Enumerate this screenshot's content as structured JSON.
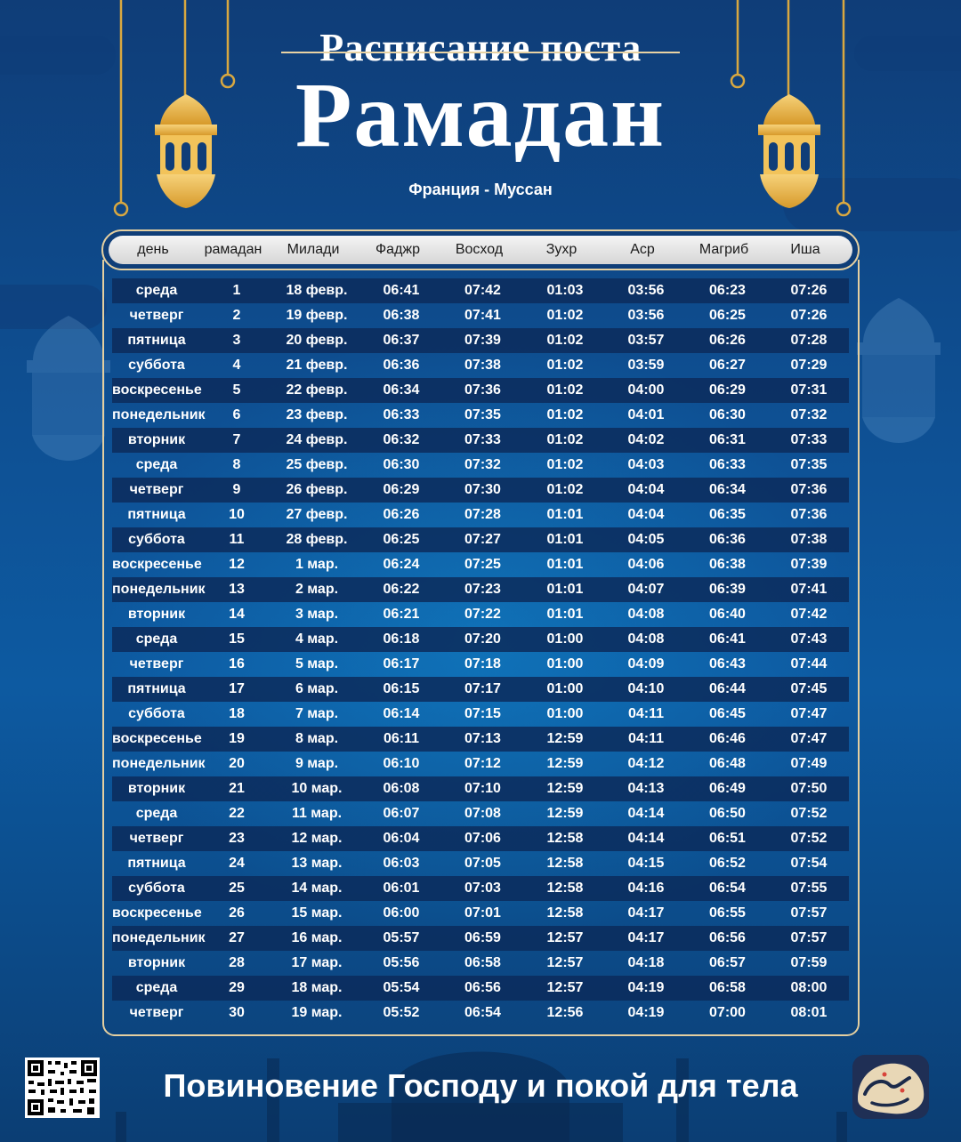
{
  "header": {
    "subtitle": "Расписание поста",
    "title": "Рамадан",
    "location": "Франция - Муссан"
  },
  "columns": [
    "день",
    "рамадан",
    "Милади",
    "Фаджр",
    "Восход",
    "Зухр",
    "Аср",
    "Магриб",
    "Иша"
  ],
  "rows": [
    [
      "среда",
      "1",
      "18 февр.",
      "06:41",
      "07:42",
      "01:03",
      "03:56",
      "06:23",
      "07:26"
    ],
    [
      "четверг",
      "2",
      "19 февр.",
      "06:38",
      "07:41",
      "01:02",
      "03:56",
      "06:25",
      "07:26"
    ],
    [
      "пятница",
      "3",
      "20 февр.",
      "06:37",
      "07:39",
      "01:02",
      "03:57",
      "06:26",
      "07:28"
    ],
    [
      "суббота",
      "4",
      "21 февр.",
      "06:36",
      "07:38",
      "01:02",
      "03:59",
      "06:27",
      "07:29"
    ],
    [
      "воскресенье",
      "5",
      "22 февр.",
      "06:34",
      "07:36",
      "01:02",
      "04:00",
      "06:29",
      "07:31"
    ],
    [
      "понедельник",
      "6",
      "23 февр.",
      "06:33",
      "07:35",
      "01:02",
      "04:01",
      "06:30",
      "07:32"
    ],
    [
      "вторник",
      "7",
      "24 февр.",
      "06:32",
      "07:33",
      "01:02",
      "04:02",
      "06:31",
      "07:33"
    ],
    [
      "среда",
      "8",
      "25 февр.",
      "06:30",
      "07:32",
      "01:02",
      "04:03",
      "06:33",
      "07:35"
    ],
    [
      "четверг",
      "9",
      "26 февр.",
      "06:29",
      "07:30",
      "01:02",
      "04:04",
      "06:34",
      "07:36"
    ],
    [
      "пятница",
      "10",
      "27 февр.",
      "06:26",
      "07:28",
      "01:01",
      "04:04",
      "06:35",
      "07:36"
    ],
    [
      "суббота",
      "11",
      "28 февр.",
      "06:25",
      "07:27",
      "01:01",
      "04:05",
      "06:36",
      "07:38"
    ],
    [
      "воскресенье",
      "12",
      "1 мар.",
      "06:24",
      "07:25",
      "01:01",
      "04:06",
      "06:38",
      "07:39"
    ],
    [
      "понедельник",
      "13",
      "2 мар.",
      "06:22",
      "07:23",
      "01:01",
      "04:07",
      "06:39",
      "07:41"
    ],
    [
      "вторник",
      "14",
      "3 мар.",
      "06:21",
      "07:22",
      "01:01",
      "04:08",
      "06:40",
      "07:42"
    ],
    [
      "среда",
      "15",
      "4 мар.",
      "06:18",
      "07:20",
      "01:00",
      "04:08",
      "06:41",
      "07:43"
    ],
    [
      "четверг",
      "16",
      "5 мар.",
      "06:17",
      "07:18",
      "01:00",
      "04:09",
      "06:43",
      "07:44"
    ],
    [
      "пятница",
      "17",
      "6 мар.",
      "06:15",
      "07:17",
      "01:00",
      "04:10",
      "06:44",
      "07:45"
    ],
    [
      "суббота",
      "18",
      "7 мар.",
      "06:14",
      "07:15",
      "01:00",
      "04:11",
      "06:45",
      "07:47"
    ],
    [
      "воскресенье",
      "19",
      "8 мар.",
      "06:11",
      "07:13",
      "12:59",
      "04:11",
      "06:46",
      "07:47"
    ],
    [
      "понедельник",
      "20",
      "9 мар.",
      "06:10",
      "07:12",
      "12:59",
      "04:12",
      "06:48",
      "07:49"
    ],
    [
      "вторник",
      "21",
      "10 мар.",
      "06:08",
      "07:10",
      "12:59",
      "04:13",
      "06:49",
      "07:50"
    ],
    [
      "среда",
      "22",
      "11 мар.",
      "06:07",
      "07:08",
      "12:59",
      "04:14",
      "06:50",
      "07:52"
    ],
    [
      "четверг",
      "23",
      "12 мар.",
      "06:04",
      "07:06",
      "12:58",
      "04:14",
      "06:51",
      "07:52"
    ],
    [
      "пятница",
      "24",
      "13 мар.",
      "06:03",
      "07:05",
      "12:58",
      "04:15",
      "06:52",
      "07:54"
    ],
    [
      "суббота",
      "25",
      "14 мар.",
      "06:01",
      "07:03",
      "12:58",
      "04:16",
      "06:54",
      "07:55"
    ],
    [
      "воскресенье",
      "26",
      "15 мар.",
      "06:00",
      "07:01",
      "12:58",
      "04:17",
      "06:55",
      "07:57"
    ],
    [
      "понедельник",
      "27",
      "16 мар.",
      "05:57",
      "06:59",
      "12:57",
      "04:17",
      "06:56",
      "07:57"
    ],
    [
      "вторник",
      "28",
      "17 мар.",
      "05:56",
      "06:58",
      "12:57",
      "04:18",
      "06:57",
      "07:59"
    ],
    [
      "среда",
      "29",
      "18 мар.",
      "05:54",
      "06:56",
      "12:57",
      "04:19",
      "06:58",
      "08:00"
    ],
    [
      "четверг",
      "30",
      "19 мар.",
      "05:52",
      "06:54",
      "12:56",
      "04:19",
      "07:00",
      "08:01"
    ]
  ],
  "footer": {
    "slogan": "Повиновение Господу и покой для тела"
  },
  "icons": {
    "left_lantern": "lantern-icon",
    "right_lantern": "lantern-icon",
    "qr": "qr-code-icon",
    "logo": "app-logo-icon"
  },
  "colors": {
    "accent_gold": "#e4cfa0",
    "lantern_gold": "#e9b441",
    "row_dark": "#0c2c5c"
  }
}
